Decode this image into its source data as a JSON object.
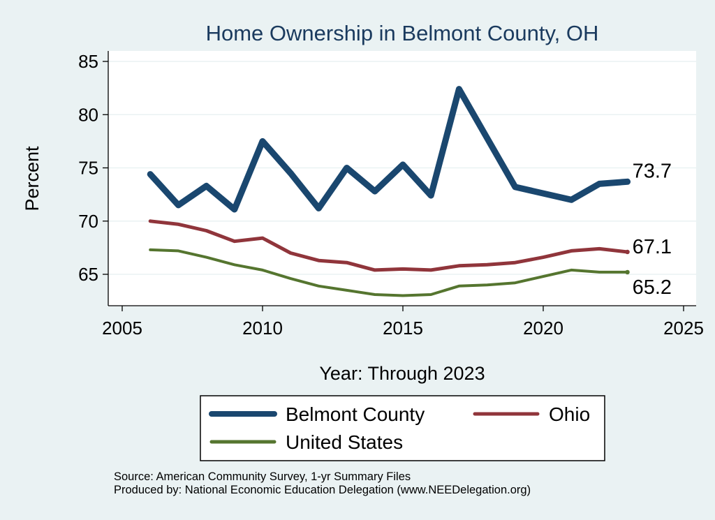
{
  "chart_data": {
    "type": "line",
    "title": "Home Ownership in Belmont County, OH",
    "xlabel": "Year: Through 2023",
    "ylabel": "Percent",
    "xlim": [
      2005,
      2025
    ],
    "ylim": [
      62.8,
      85.8
    ],
    "xticks": [
      "2005",
      "2010",
      "2015",
      "2020",
      "2025"
    ],
    "yticks": [
      "65",
      "70",
      "75",
      "80",
      "85"
    ],
    "grid": true,
    "legend_position": "bottom",
    "series": [
      {
        "name": "Belmont County",
        "color": "#1a476f",
        "x": [
          2006,
          2007,
          2008,
          2009,
          2010,
          2011,
          2012,
          2013,
          2014,
          2015,
          2016,
          2017,
          2018,
          2019,
          2021,
          2022,
          2023
        ],
        "y": [
          74.4,
          71.5,
          73.3,
          71.1,
          77.5,
          74.5,
          71.2,
          75.0,
          72.8,
          75.3,
          72.4,
          82.4,
          77.8,
          73.2,
          72.0,
          73.5,
          73.7
        ],
        "end_label": "73.7"
      },
      {
        "name": "Ohio",
        "color": "#90353b",
        "x": [
          2006,
          2007,
          2008,
          2009,
          2010,
          2011,
          2012,
          2013,
          2014,
          2015,
          2016,
          2017,
          2018,
          2019,
          2020,
          2021,
          2022,
          2023
        ],
        "y": [
          70.0,
          69.7,
          69.1,
          68.1,
          68.4,
          67.0,
          66.3,
          66.1,
          65.4,
          65.5,
          65.4,
          65.8,
          65.9,
          66.1,
          66.6,
          67.2,
          67.4,
          67.1
        ],
        "end_label": "67.1"
      },
      {
        "name": "United States",
        "color": "#55752f",
        "x": [
          2006,
          2007,
          2008,
          2009,
          2010,
          2011,
          2012,
          2013,
          2014,
          2015,
          2016,
          2017,
          2018,
          2019,
          2021,
          2022,
          2023
        ],
        "y": [
          67.3,
          67.2,
          66.6,
          65.9,
          65.4,
          64.6,
          63.9,
          63.5,
          63.1,
          63.0,
          63.1,
          63.9,
          64.0,
          64.2,
          65.4,
          65.2,
          65.2
        ],
        "end_label": "65.2"
      }
    ]
  },
  "notes": {
    "source": "Source: American Community Survey, 1-yr Summary Files",
    "produced_by": "Produced by: National Economic Education Delegation (www.NEEDelegation.org)"
  }
}
